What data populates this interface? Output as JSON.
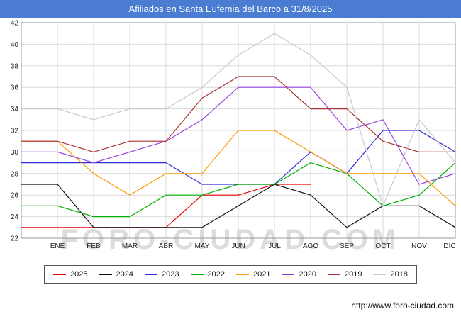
{
  "watermark": "FORO-CIUDAD.COM",
  "footer_url": "http://www.foro-ciudad.com",
  "colors": {
    "titlebar": "#4a7dd2",
    "grid": "#d9d9d9",
    "axis_border": "#999999",
    "watermark": "#dcdcdc"
  },
  "chart_data": {
    "type": "line",
    "title": "Afiliados en Santa Eufemia del Barco a 31/8/2025",
    "xlabel": "",
    "ylabel": "",
    "categories": [
      "ENE",
      "FEB",
      "MAR",
      "ABR",
      "MAY",
      "JUN",
      "JUL",
      "AGO",
      "SEP",
      "OCT",
      "NOV",
      "DIC"
    ],
    "ylim": [
      22,
      42
    ],
    "ytick_step": 2,
    "grid": true,
    "legend_position": "bottom",
    "series": [
      {
        "name": "2025",
        "color": "#e60000",
        "values": [
          23,
          23,
          23,
          23,
          26,
          26,
          27,
          27,
          null,
          null,
          null,
          null
        ]
      },
      {
        "name": "2024",
        "color": "#111111",
        "values": [
          27,
          23,
          23,
          23,
          23,
          25,
          27,
          26,
          23,
          25,
          25,
          23
        ]
      },
      {
        "name": "2023",
        "color": "#2e2ed6",
        "values": [
          29,
          29,
          29,
          29,
          27,
          27,
          27,
          30,
          28,
          32,
          32,
          30
        ]
      },
      {
        "name": "2022",
        "color": "#00b000",
        "values": [
          25,
          24,
          24,
          26,
          26,
          27,
          27,
          29,
          28,
          25,
          26,
          29
        ]
      },
      {
        "name": "2021",
        "color": "#ff9900",
        "values": [
          31,
          28,
          26,
          28,
          28,
          32,
          32,
          30,
          28,
          28,
          28,
          25
        ]
      },
      {
        "name": "2020",
        "color": "#9944dd",
        "values": [
          30,
          29,
          30,
          31,
          33,
          36,
          36,
          36,
          32,
          33,
          27,
          28
        ]
      },
      {
        "name": "2019",
        "color": "#aa3333",
        "values": [
          31,
          30,
          31,
          31,
          35,
          37,
          37,
          34,
          34,
          31,
          30,
          30
        ]
      },
      {
        "name": "2018",
        "color": "#c8c8c8",
        "values": [
          34,
          33,
          34,
          34,
          36,
          39,
          41,
          39,
          36,
          25,
          33,
          29
        ]
      }
    ]
  }
}
